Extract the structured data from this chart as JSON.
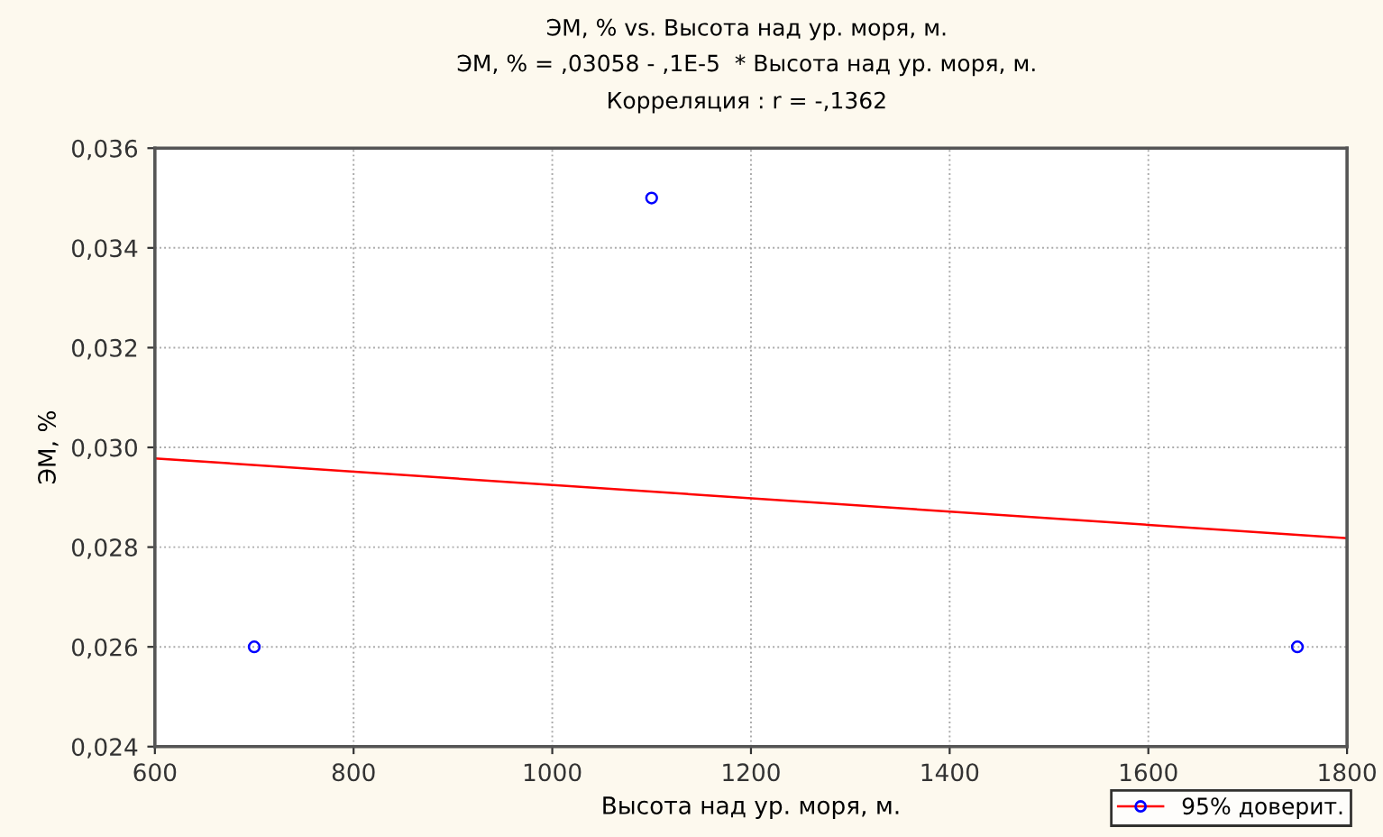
{
  "chart_data": {
    "type": "scatter",
    "title": "ЭМ, % vs. Высота над ур. моря, м.",
    "subtitle": "ЭМ, % = ,03058 - ,1E-5  * Высота над ур. моря, м.\nКорреляция : r = -,1362",
    "xlabel": "Высота над ур. моря, м.",
    "ylabel": "ЭМ, %",
    "series": [
      {
        "name": "95% доверит.",
        "marker": "circle",
        "color": "#0000ff",
        "x": [
          700,
          1100,
          1750
        ],
        "values": [
          0.026,
          0.035,
          0.026
        ]
      },
      {
        "type": "line",
        "color": "#ff0000",
        "x": [
          600,
          1800
        ],
        "values": [
          0.02978,
          0.02818
        ]
      }
    ],
    "xlim": [
      600,
      1800
    ],
    "xticks": [
      600,
      800,
      1000,
      1200,
      1400,
      1600,
      1800
    ],
    "ylim": [
      0.024,
      0.036
    ],
    "yticks": [
      {
        "value": 0.024,
        "label": "0,024"
      },
      {
        "value": 0.026,
        "label": "0,026"
      },
      {
        "value": 0.028,
        "label": "0,028"
      },
      {
        "value": 0.03,
        "label": "0,030"
      },
      {
        "value": 0.032,
        "label": "0,032"
      },
      {
        "value": 0.034,
        "label": "0,034"
      },
      {
        "value": 0.036,
        "label": "0,036"
      }
    ],
    "grid": true,
    "legend": "bottom right"
  }
}
